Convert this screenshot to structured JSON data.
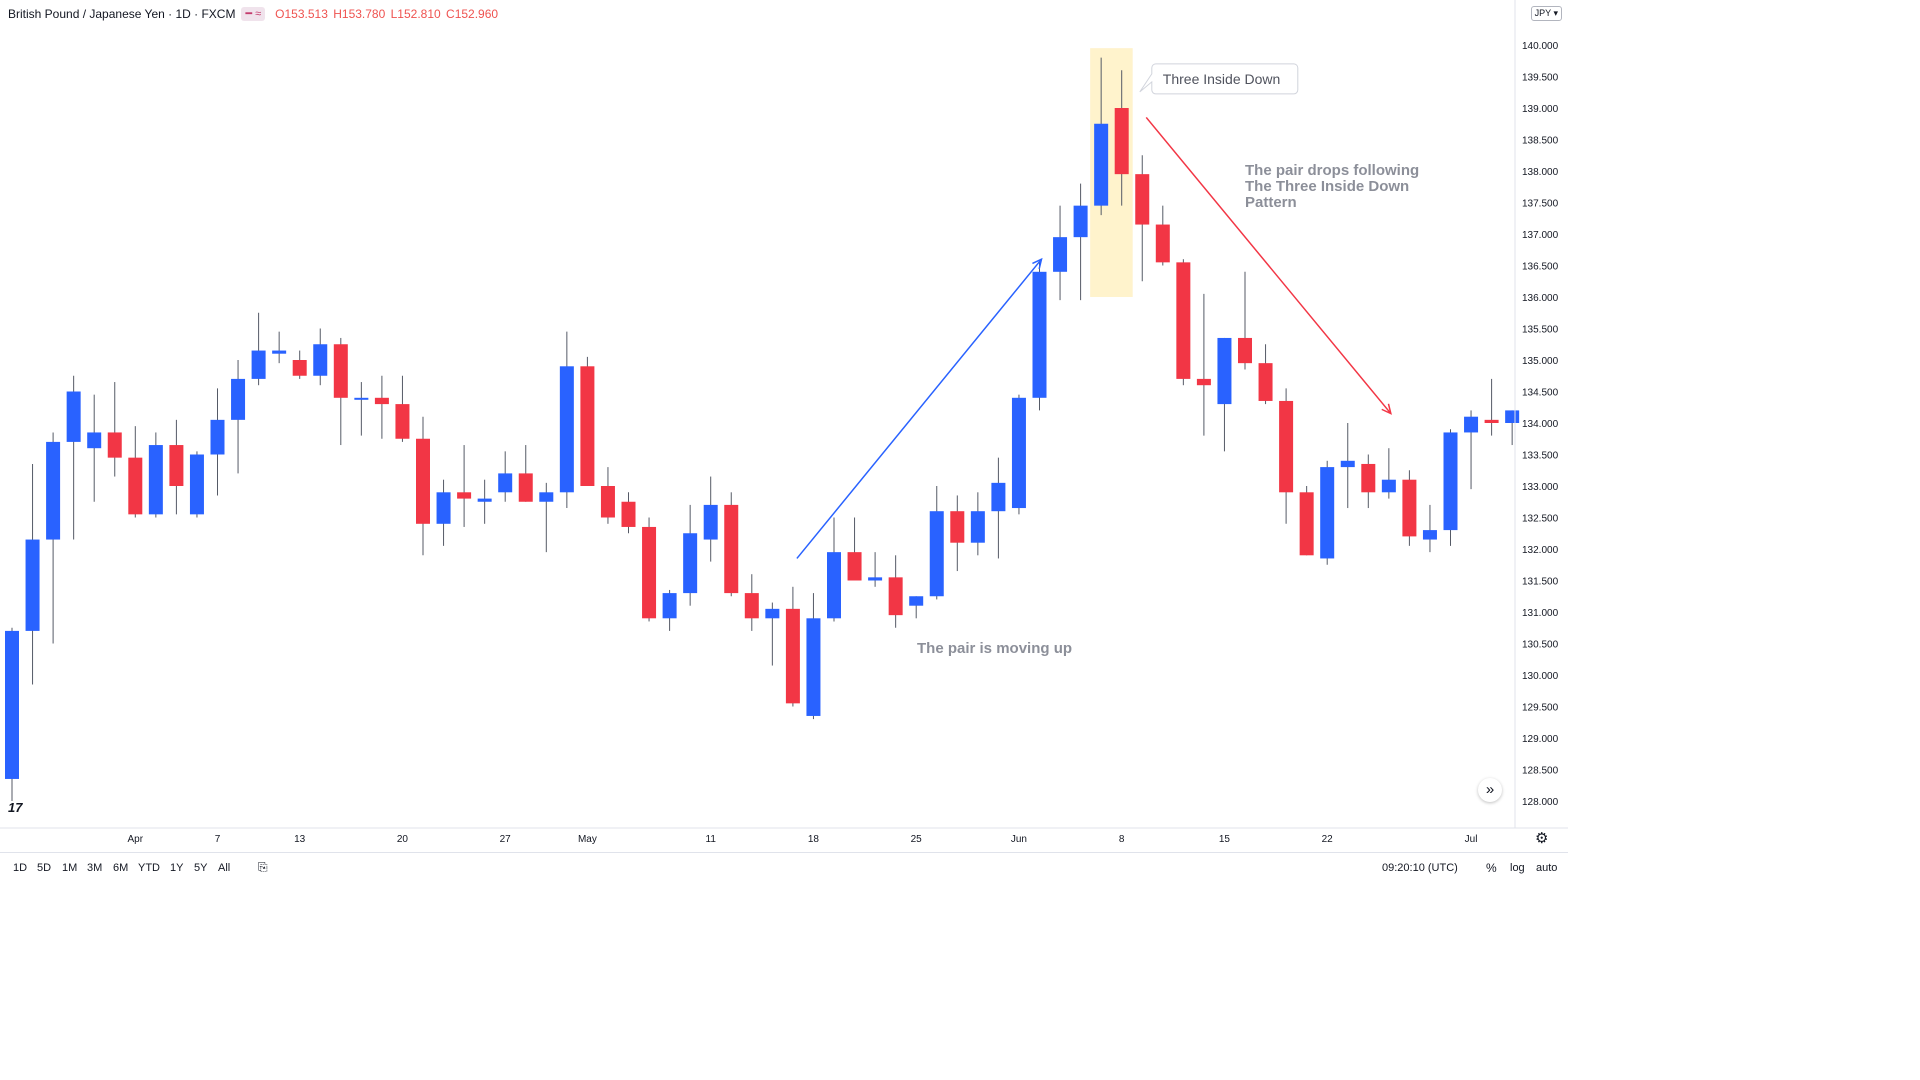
{
  "header": {
    "symbol": "British Pound / Japanese Yen · 1D · FXCM",
    "change_badge": "━ ≈",
    "open": "O153.513",
    "high": "H153.780",
    "low": "L152.810",
    "close": "C152.960"
  },
  "currency_button": "JPY",
  "bottom_bar": {
    "timeframes": [
      "1D",
      "5D",
      "1M",
      "3M",
      "6M",
      "YTD",
      "1Y",
      "5Y",
      "All"
    ],
    "time": "09:20:10 (UTC)",
    "percent": "%",
    "log": "log",
    "auto": "auto"
  },
  "colors": {
    "up": "#2962ff",
    "down": "#f23645",
    "up_arrow": "#2962ff",
    "down_arrow": "#f23645",
    "highlight": "#fff3cc"
  },
  "icons": {
    "tradingview-logo": "TradingView logo",
    "scroll-right": "»",
    "settings": "gear"
  },
  "chart_data": {
    "type": "candlestick",
    "y_ticks": [
      "140.000",
      "139.500",
      "139.000",
      "138.500",
      "138.000",
      "137.500",
      "137.000",
      "136.500",
      "136.000",
      "135.500",
      "135.000",
      "134.500",
      "134.000",
      "133.500",
      "133.000",
      "132.500",
      "132.000",
      "131.500",
      "131.000",
      "130.500",
      "130.000",
      "129.500",
      "129.000",
      "128.500",
      "128.000"
    ],
    "ylim": [
      127.6,
      140.5
    ],
    "x_labels": [
      "Apr",
      "7",
      "13",
      "20",
      "27",
      "May",
      "11",
      "18",
      "25",
      "Jun",
      "8",
      "15",
      "22",
      "Jul"
    ],
    "candles": [
      {
        "o": 128.35,
        "h": 130.75,
        "l": 128.0,
        "c": 130.7
      },
      {
        "o": 130.7,
        "h": 133.35,
        "l": 129.85,
        "c": 132.15
      },
      {
        "o": 132.15,
        "h": 133.85,
        "l": 130.5,
        "c": 133.7
      },
      {
        "o": 133.7,
        "h": 134.75,
        "l": 132.15,
        "c": 134.5
      },
      {
        "o": 133.6,
        "h": 134.45,
        "l": 132.75,
        "c": 133.85
      },
      {
        "o": 133.85,
        "h": 134.65,
        "l": 133.15,
        "c": 133.45
      },
      {
        "o": 133.45,
        "h": 133.95,
        "l": 132.5,
        "c": 132.55
      },
      {
        "o": 132.55,
        "h": 133.85,
        "l": 132.5,
        "c": 133.65
      },
      {
        "o": 133.65,
        "h": 134.05,
        "l": 132.55,
        "c": 133.0
      },
      {
        "o": 132.55,
        "h": 133.55,
        "l": 132.5,
        "c": 133.5
      },
      {
        "o": 133.5,
        "h": 134.55,
        "l": 132.85,
        "c": 134.05
      },
      {
        "o": 134.05,
        "h": 135.0,
        "l": 133.2,
        "c": 134.7
      },
      {
        "o": 134.7,
        "h": 135.75,
        "l": 134.6,
        "c": 135.15
      },
      {
        "o": 135.1,
        "h": 135.45,
        "l": 134.95,
        "c": 135.15
      },
      {
        "o": 135.0,
        "h": 135.15,
        "l": 134.7,
        "c": 134.75
      },
      {
        "o": 134.75,
        "h": 135.5,
        "l": 134.6,
        "c": 135.25
      },
      {
        "o": 135.25,
        "h": 135.35,
        "l": 133.65,
        "c": 134.4
      },
      {
        "o": 134.4,
        "h": 134.65,
        "l": 133.8,
        "c": 134.4
      },
      {
        "o": 134.4,
        "h": 134.75,
        "l": 133.75,
        "c": 134.3
      },
      {
        "o": 134.3,
        "h": 134.75,
        "l": 133.7,
        "c": 133.75
      },
      {
        "o": 133.75,
        "h": 134.1,
        "l": 131.9,
        "c": 132.4
      },
      {
        "o": 132.4,
        "h": 133.1,
        "l": 132.05,
        "c": 132.9
      },
      {
        "o": 132.9,
        "h": 133.65,
        "l": 132.35,
        "c": 132.8
      },
      {
        "o": 132.75,
        "h": 133.1,
        "l": 132.4,
        "c": 132.8
      },
      {
        "o": 132.9,
        "h": 133.55,
        "l": 132.75,
        "c": 133.2
      },
      {
        "o": 133.2,
        "h": 133.65,
        "l": 132.75,
        "c": 132.75
      },
      {
        "o": 132.75,
        "h": 133.05,
        "l": 131.95,
        "c": 132.9
      },
      {
        "o": 132.9,
        "h": 135.45,
        "l": 132.65,
        "c": 134.9
      },
      {
        "o": 134.9,
        "h": 135.05,
        "l": 133.0,
        "c": 133.0
      },
      {
        "o": 133.0,
        "h": 133.3,
        "l": 132.4,
        "c": 132.5
      },
      {
        "o": 132.75,
        "h": 132.9,
        "l": 132.25,
        "c": 132.35
      },
      {
        "o": 132.35,
        "h": 132.5,
        "l": 130.85,
        "c": 130.9
      },
      {
        "o": 130.9,
        "h": 131.35,
        "l": 130.7,
        "c": 131.3
      },
      {
        "o": 131.3,
        "h": 132.7,
        "l": 131.1,
        "c": 132.25
      },
      {
        "o": 132.15,
        "h": 133.15,
        "l": 131.8,
        "c": 132.7
      },
      {
        "o": 132.7,
        "h": 132.9,
        "l": 131.25,
        "c": 131.3
      },
      {
        "o": 131.3,
        "h": 131.6,
        "l": 130.7,
        "c": 130.9
      },
      {
        "o": 130.9,
        "h": 131.15,
        "l": 130.15,
        "c": 131.05
      },
      {
        "o": 131.05,
        "h": 131.4,
        "l": 129.5,
        "c": 129.55
      },
      {
        "o": 129.35,
        "h": 131.3,
        "l": 129.3,
        "c": 130.9
      },
      {
        "o": 130.9,
        "h": 132.5,
        "l": 130.85,
        "c": 131.95
      },
      {
        "o": 131.95,
        "h": 132.5,
        "l": 131.5,
        "c": 131.5
      },
      {
        "o": 131.5,
        "h": 131.95,
        "l": 131.4,
        "c": 131.55
      },
      {
        "o": 131.55,
        "h": 131.9,
        "l": 130.75,
        "c": 130.95
      },
      {
        "o": 131.1,
        "h": 131.25,
        "l": 130.9,
        "c": 131.25
      },
      {
        "o": 131.25,
        "h": 133.0,
        "l": 131.2,
        "c": 132.6
      },
      {
        "o": 132.6,
        "h": 132.85,
        "l": 131.65,
        "c": 132.1
      },
      {
        "o": 132.1,
        "h": 132.9,
        "l": 131.9,
        "c": 132.6
      },
      {
        "o": 132.6,
        "h": 133.45,
        "l": 131.85,
        "c": 133.05
      },
      {
        "o": 132.65,
        "h": 134.45,
        "l": 132.55,
        "c": 134.4
      },
      {
        "o": 134.4,
        "h": 136.55,
        "l": 134.2,
        "c": 136.4
      },
      {
        "o": 136.4,
        "h": 137.45,
        "l": 135.95,
        "c": 136.95
      },
      {
        "o": 136.95,
        "h": 137.8,
        "l": 135.95,
        "c": 137.45
      },
      {
        "o": 137.45,
        "h": 139.8,
        "l": 137.3,
        "c": 138.75
      },
      {
        "o": 139.0,
        "h": 139.6,
        "l": 137.45,
        "c": 137.95
      },
      {
        "o": 137.95,
        "h": 138.25,
        "l": 136.25,
        "c": 137.15
      },
      {
        "o": 137.15,
        "h": 137.45,
        "l": 136.5,
        "c": 136.55
      },
      {
        "o": 136.55,
        "h": 136.6,
        "l": 134.6,
        "c": 134.7
      },
      {
        "o": 134.7,
        "h": 136.05,
        "l": 133.8,
        "c": 134.6
      },
      {
        "o": 134.3,
        "h": 135.35,
        "l": 133.55,
        "c": 135.35
      },
      {
        "o": 135.35,
        "h": 136.4,
        "l": 134.85,
        "c": 134.95
      },
      {
        "o": 134.95,
        "h": 135.25,
        "l": 134.3,
        "c": 134.35
      },
      {
        "o": 134.35,
        "h": 134.55,
        "l": 132.4,
        "c": 132.9
      },
      {
        "o": 132.9,
        "h": 133.0,
        "l": 131.9,
        "c": 131.9
      },
      {
        "o": 131.85,
        "h": 133.4,
        "l": 131.75,
        "c": 133.3
      },
      {
        "o": 133.3,
        "h": 134.0,
        "l": 132.65,
        "c": 133.4
      },
      {
        "o": 133.35,
        "h": 133.5,
        "l": 132.65,
        "c": 132.9
      },
      {
        "o": 132.9,
        "h": 133.6,
        "l": 132.8,
        "c": 133.1
      },
      {
        "o": 133.1,
        "h": 133.25,
        "l": 132.05,
        "c": 132.2
      },
      {
        "o": 132.15,
        "h": 132.7,
        "l": 131.95,
        "c": 132.3
      },
      {
        "o": 132.3,
        "h": 133.9,
        "l": 132.05,
        "c": 133.85
      },
      {
        "o": 133.85,
        "h": 134.2,
        "l": 132.95,
        "c": 134.1
      },
      {
        "o": 134.05,
        "h": 134.7,
        "l": 133.8,
        "c": 134.0
      },
      {
        "o": 134.0,
        "h": 134.2,
        "l": 133.65,
        "c": 134.2
      }
    ],
    "annotations": [
      {
        "type": "callout",
        "text": "Three Inside Down"
      },
      {
        "type": "text",
        "text": "The pair drops following\nThe Three Inside Down\nPattern"
      },
      {
        "type": "text",
        "text": "The pair is moving up"
      }
    ],
    "highlight_candles": [
      53,
      54
    ]
  }
}
